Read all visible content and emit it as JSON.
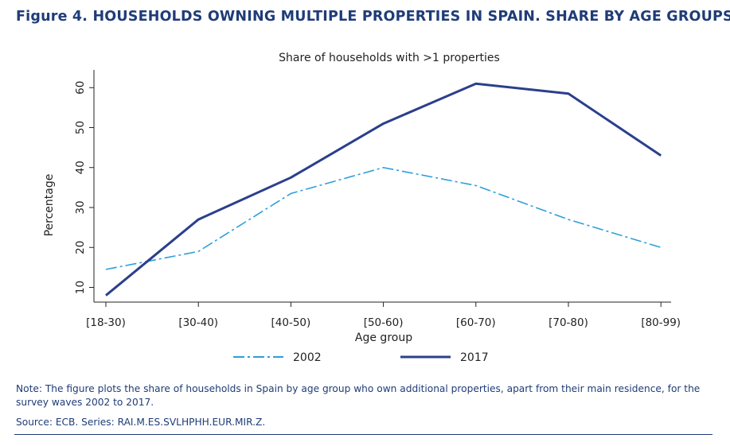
{
  "figure_title": "Figure 4. HOUSEHOLDS OWNING MULTIPLE PROPERTIES IN SPAIN. SHARE BY AGE GROUPS",
  "note": "Note: The figure plots the share of households in Spain by age group who own additional properties, apart from their main residence, for the survey waves 2002 to 2017.",
  "source": "Source: ECB. Series: RAI.M.ES.SVLHPHH.EUR.MIR.Z.",
  "chart_data": {
    "type": "line",
    "title": "Share of households with >1 properties",
    "xlabel": "Age group",
    "ylabel": "Percentage",
    "categories": [
      "[18-30)",
      "[30-40)",
      "[40-50)",
      "[50-60)",
      "[60-70)",
      "[70-80)",
      "[80-99)"
    ],
    "yticks": [
      10,
      20,
      30,
      40,
      50,
      60
    ],
    "ylim": [
      7,
      62
    ],
    "grid": false,
    "legend_position": "bottom",
    "series": [
      {
        "name": "2002",
        "values": [
          14.5,
          19,
          33.5,
          40,
          35.5,
          27,
          20
        ],
        "color": "#2e9fd8",
        "style": "dashed"
      },
      {
        "name": "2017",
        "values": [
          8,
          27,
          37.5,
          51,
          61,
          58.5,
          43
        ],
        "color": "#2b3f8c",
        "style": "solid"
      }
    ]
  }
}
